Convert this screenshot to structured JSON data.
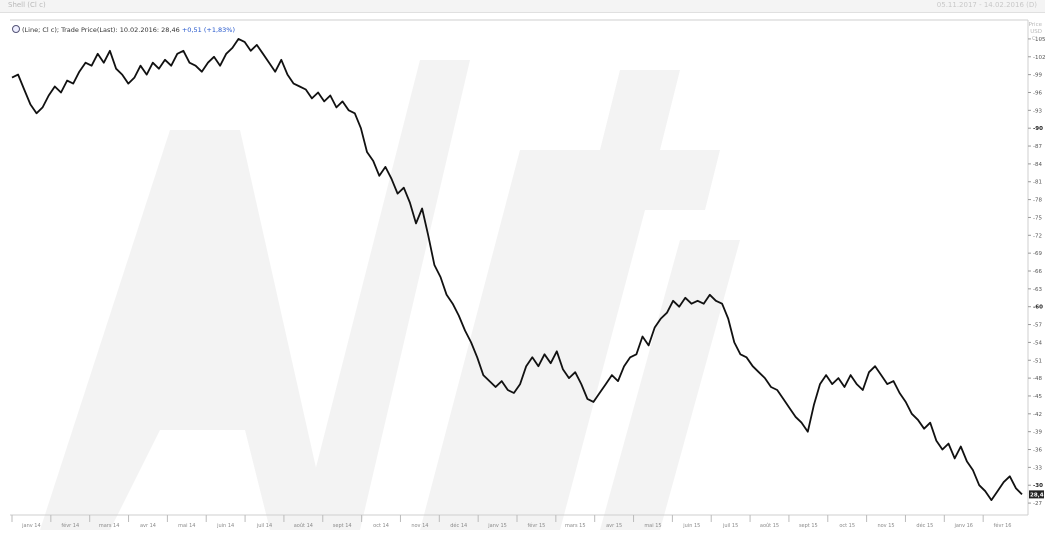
{
  "window": {
    "title_left": "Shell (Cl c)",
    "title_right": "05.11.2017 - 14.02.2016 (D)"
  },
  "legend": {
    "text": "(Line; Cl c); Trade Price(Last): 10.02.2016: 28,46",
    "change": "+0,51 (+1,83%)"
  },
  "axis": {
    "right_labels_top": [
      "Price",
      "USD",
      "Cl c"
    ],
    "last_price_label": "28,46"
  },
  "colors": {
    "line": "#111111",
    "axis_text": "#555555",
    "last_price_bg": "#222222",
    "watermark": "#f2f2f2"
  },
  "chart_data": {
    "type": "line",
    "title": "",
    "xlabel": "",
    "ylabel": "",
    "ylim": [
      25.5,
      106.5
    ],
    "grid": false,
    "yticks": [
      105,
      102,
      99,
      96,
      93,
      90,
      87,
      84,
      81,
      78,
      75,
      72,
      69,
      66,
      63,
      60,
      57,
      54,
      51,
      48,
      45,
      42,
      39,
      36,
      33,
      30,
      27
    ],
    "xticks": [
      "janv 14",
      "févr 14",
      "mars 14",
      "avr 14",
      "mai 14",
      "juin 14",
      "juil 14",
      "août 14",
      "sept 14",
      "oct 14",
      "nov 14",
      "déc 14",
      "janv 15",
      "févr 15",
      "mars 15",
      "avr 15",
      "mai 15",
      "juin 15",
      "juil 15",
      "août 15",
      "sept 15",
      "oct 15",
      "nov 15",
      "déc 15",
      "janv 16",
      "févr 16"
    ],
    "series": [
      {
        "values": [
          98.5,
          99.0,
          96.5,
          94.0,
          92.5,
          93.5,
          95.5,
          97.0,
          96.0,
          98.0,
          97.5,
          99.5,
          101.0,
          100.5,
          102.5,
          101.0,
          103.0,
          100.0,
          99.0,
          97.5,
          98.5,
          100.5,
          99.0,
          101.0,
          100.0,
          101.5,
          100.5,
          102.5,
          103.0,
          101.0,
          100.5,
          99.5,
          101.0,
          102.0,
          100.5,
          102.5,
          103.5,
          105.0,
          104.5,
          103.0,
          104.0,
          102.5,
          101.0,
          99.5,
          101.5,
          99.0,
          97.5,
          97.0,
          96.5,
          95.0,
          96.0,
          94.5,
          95.5,
          93.5,
          94.5,
          93.0,
          92.5,
          90.0,
          86.0,
          84.5,
          82.0,
          83.5,
          81.5,
          79.0,
          80.0,
          77.5,
          74.0,
          76.5,
          72.0,
          67.0,
          65.0,
          62.0,
          60.5,
          58.5,
          56.0,
          54.0,
          51.5,
          48.5,
          47.5,
          46.5,
          47.5,
          46.0,
          45.5,
          47.0,
          50.0,
          51.5,
          50.0,
          52.0,
          50.5,
          52.5,
          49.5,
          48.0,
          49.0,
          47.0,
          44.5,
          44.0,
          45.5,
          47.0,
          48.5,
          47.5,
          50.0,
          51.5,
          52.0,
          55.0,
          53.5,
          56.5,
          58.0,
          59.0,
          61.0,
          60.0,
          61.5,
          60.5,
          61.0,
          60.5,
          62.0,
          61.0,
          60.5,
          58.0,
          54.0,
          52.0,
          51.5,
          50.0,
          49.0,
          48.0,
          46.5,
          46.0,
          44.5,
          43.0,
          41.5,
          40.5,
          39.0,
          43.5,
          47.0,
          48.5,
          47.0,
          48.0,
          46.5,
          48.5,
          47.0,
          46.0,
          49.0,
          50.0,
          48.5,
          47.0,
          47.5,
          45.5,
          44.0,
          42.0,
          41.0,
          39.5,
          40.5,
          37.5,
          36.0,
          37.0,
          34.5,
          36.5,
          34.0,
          32.5,
          30.0,
          29.0,
          27.5,
          29.0,
          30.5,
          31.5,
          29.5,
          28.46
        ]
      }
    ]
  }
}
